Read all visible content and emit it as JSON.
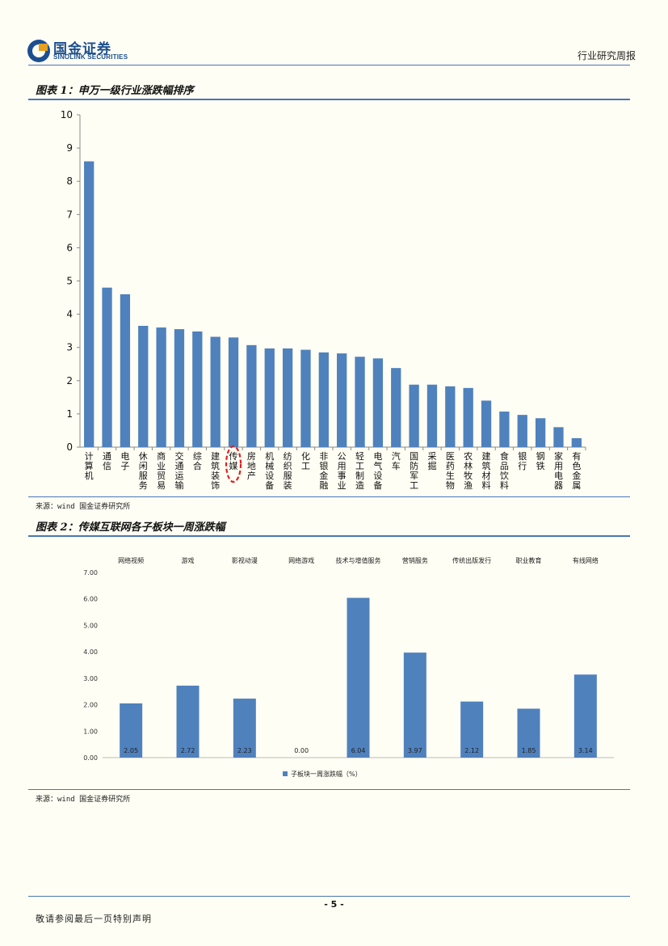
{
  "header": {
    "logo_cn": "国金证券",
    "logo_en": "SINOLINK SECURITIES",
    "report_type": "行业研究周报"
  },
  "figure1": {
    "title": "图表 1：申万一级行业涨跌幅排序",
    "source": "来源：wind 国金证券研究所"
  },
  "figure2": {
    "title": "图表 2：传媒互联网各子板块一周涨跌幅",
    "source": "来源：wind 国金证券研究所"
  },
  "footer": {
    "page": "- 5 -",
    "disclaimer": "敬请参阅最后一页特别声明"
  },
  "colors": {
    "bar": "#4f81bd",
    "rule": "#4a76b5",
    "highlight": "#e02020"
  },
  "chart_data": [
    {
      "type": "bar",
      "title": "",
      "categories": [
        "计算机",
        "通信",
        "电子",
        "休闲服务",
        "商业贸易",
        "交通运输",
        "综合",
        "建筑装饰",
        "传媒",
        "房地产",
        "机械设备",
        "纺织服装",
        "化工",
        "非银金融",
        "公用事业",
        "轻工制造",
        "电气设备",
        "汽车",
        "国防军工",
        "采掘",
        "医药生物",
        "农林牧渔",
        "建筑材料",
        "食品饮料",
        "银行",
        "钢铁",
        "家用电器",
        "有色金属"
      ],
      "values": [
        8.6,
        4.8,
        4.6,
        3.65,
        3.6,
        3.55,
        3.48,
        3.32,
        3.3,
        3.07,
        2.97,
        2.97,
        2.93,
        2.85,
        2.82,
        2.72,
        2.67,
        2.38,
        1.88,
        1.88,
        1.83,
        1.78,
        1.4,
        1.07,
        0.97,
        0.87,
        0.6,
        0.27
      ],
      "highlight": "传媒",
      "ylim": [
        0,
        10
      ],
      "yticks": [
        "0",
        "1",
        "2",
        "3",
        "4",
        "5",
        "6",
        "7",
        "8",
        "9",
        "10"
      ],
      "xlabel": "",
      "ylabel": "",
      "grid": false
    },
    {
      "type": "bar",
      "title": "",
      "categories": [
        "网络视频",
        "游戏",
        "影视动漫",
        "网络游戏",
        "技术与增值服务",
        "营销服务",
        "传统出版发行",
        "职业教育",
        "有线网络"
      ],
      "values": [
        2.05,
        2.72,
        2.23,
        0.0,
        6.04,
        3.97,
        2.12,
        1.85,
        3.14
      ],
      "labels": [
        "2.05",
        "2.72",
        "2.23",
        "0.00",
        "6.04",
        "3.97",
        "2.12",
        "1.85",
        "3.14"
      ],
      "ylim": [
        0,
        7
      ],
      "yticks": [
        "0.00",
        "1.00",
        "2.00",
        "3.00",
        "4.00",
        "5.00",
        "6.00",
        "7.00"
      ],
      "legend": "子板块一周涨跌幅（%）",
      "legend_position": "bottom",
      "xlabel": "",
      "ylabel": "",
      "grid": false
    }
  ]
}
